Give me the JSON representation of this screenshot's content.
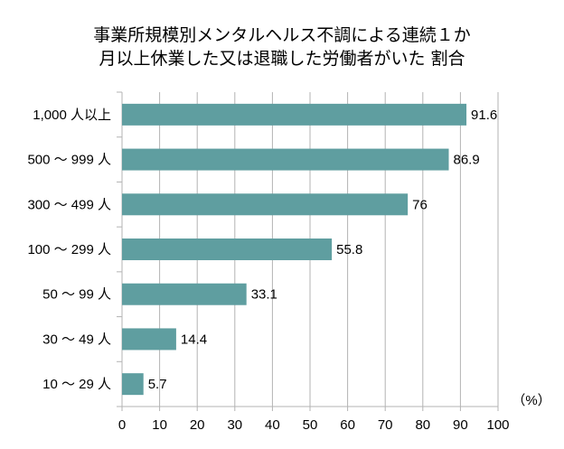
{
  "chart_data": {
    "type": "bar",
    "orientation": "horizontal",
    "title": [
      "事業所規模別メンタルヘルス不調による連続１か",
      "月以上休業した又は退職した労働者がいた 割合"
    ],
    "categories": [
      "1,000 人以上",
      "500 ～ 999 人",
      "300 ～ 499 人",
      "100 ～ 299 人",
      "50 ～ 99 人",
      "30 ～ 49 人",
      "10 ～ 29 人"
    ],
    "values": [
      91.6,
      86.9,
      76,
      55.8,
      33.1,
      14.4,
      5.7
    ],
    "xlim": [
      0,
      100
    ],
    "xticks": [
      0,
      10,
      20,
      30,
      40,
      50,
      60,
      70,
      80,
      90,
      100
    ],
    "xunit": "（%）",
    "grid": true,
    "bar_color": "#5f9ea0",
    "grid_color": "#b3b3b3"
  }
}
